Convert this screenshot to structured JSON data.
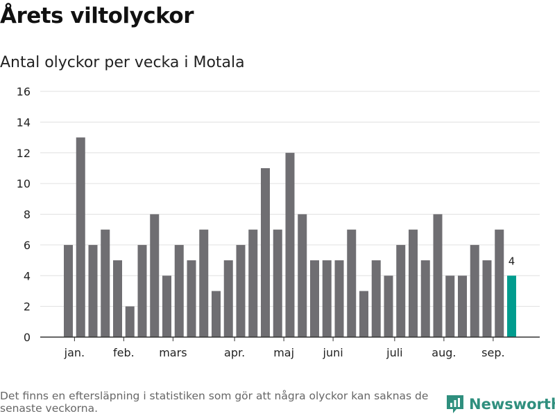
{
  "header": {
    "title": "Årets viltolyckor",
    "subtitle": "Antal olyckor per vecka i Motala"
  },
  "footer": {
    "note": "Det finns en eftersläpning i statistiken som gör att några olyckor kan saknas de senaste veckorna.",
    "brand": "Newsworthy"
  },
  "chart_data": {
    "type": "bar",
    "title": "Antal olyckor per vecka i Motala",
    "xlabel": "",
    "ylabel": "",
    "ylim": [
      0,
      16
    ],
    "yticks": [
      0,
      2,
      4,
      6,
      8,
      10,
      12,
      14,
      16
    ],
    "values": [
      6,
      13,
      6,
      7,
      5,
      2,
      6,
      8,
      4,
      6,
      5,
      7,
      3,
      5,
      6,
      7,
      11,
      7,
      12,
      8,
      5,
      5,
      5,
      7,
      3,
      5,
      4,
      6,
      7,
      5,
      8,
      4,
      4,
      6,
      5,
      7,
      4
    ],
    "month_labels": [
      {
        "label": "jan.",
        "bar_index": 0.5
      },
      {
        "label": "feb.",
        "bar_index": 4.5
      },
      {
        "label": "mars",
        "bar_index": 8.5
      },
      {
        "label": "apr.",
        "bar_index": 13.5
      },
      {
        "label": "maj",
        "bar_index": 17.5
      },
      {
        "label": "juni",
        "bar_index": 21.5
      },
      {
        "label": "juli",
        "bar_index": 26.5
      },
      {
        "label": "aug.",
        "bar_index": 30.5
      },
      {
        "label": "sep.",
        "bar_index": 34.5
      }
    ],
    "highlight_index": 36,
    "highlight_label": "4",
    "grid": true,
    "colors": {
      "bar": "#6f6e72",
      "highlight": "#009c8e",
      "grid": "#e0e0e0",
      "axis": "#333333"
    }
  }
}
